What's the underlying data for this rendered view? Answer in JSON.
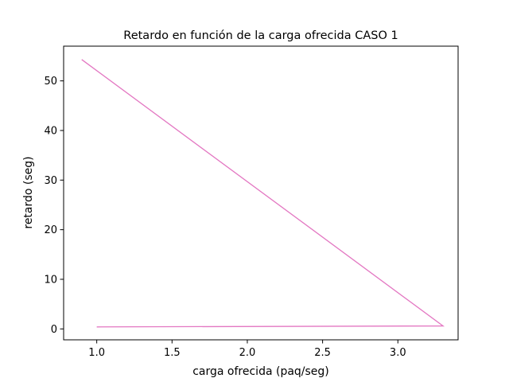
{
  "chart_data": {
    "type": "line",
    "title": "Retardo en función de la carga ofrecida CASO 1",
    "xlabel": "carga ofrecida (paq/seg)",
    "ylabel": "retardo (seg)",
    "xlim": [
      0.78,
      3.4
    ],
    "ylim": [
      -2.2,
      57.0
    ],
    "xticks": [
      1.0,
      1.5,
      2.0,
      2.5,
      3.0
    ],
    "xtick_labels": [
      "1.0",
      "1.5",
      "2.0",
      "2.5",
      "3.0"
    ],
    "yticks": [
      0,
      10,
      20,
      30,
      40,
      50
    ],
    "ytick_labels": [
      "0",
      "10",
      "20",
      "30",
      "40",
      "50"
    ],
    "grid": false,
    "series": [
      {
        "color": "#e377c2",
        "x": [
          0.9,
          3.3,
          1.0
        ],
        "y": [
          54.3,
          0.6,
          0.4
        ]
      }
    ]
  }
}
